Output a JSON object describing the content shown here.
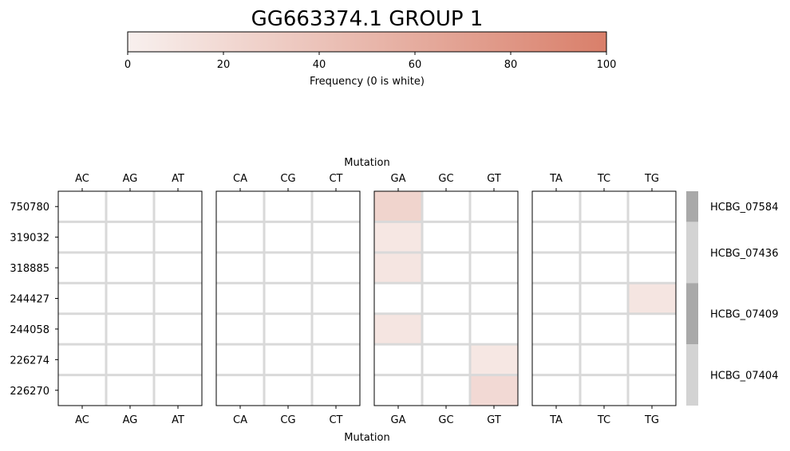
{
  "chart_data": {
    "type": "heatmap",
    "title": "GG663374.1 GROUP 1",
    "colorbar": {
      "label": "Frequency (0 is white)",
      "range": [
        0,
        100
      ],
      "ticks": [
        "0",
        "20",
        "40",
        "60",
        "80",
        "100"
      ],
      "color_low": "#f8f0ee",
      "color_high": "#d97f6a"
    },
    "xlabel": "Mutation",
    "panels": [
      {
        "columns": [
          "AC",
          "AG",
          "AT"
        ]
      },
      {
        "columns": [
          "CA",
          "CG",
          "CT"
        ]
      },
      {
        "columns": [
          "GA",
          "GC",
          "GT"
        ]
      },
      {
        "columns": [
          "TA",
          "TC",
          "TG"
        ]
      }
    ],
    "rows": [
      "750780",
      "319032",
      "318885",
      "244427",
      "244058",
      "226274",
      "226270"
    ],
    "values": [
      [
        0,
        0,
        0,
        0,
        0,
        0,
        25,
        0,
        0,
        0,
        0,
        0
      ],
      [
        0,
        0,
        0,
        0,
        0,
        0,
        8,
        0,
        0,
        0,
        0,
        0
      ],
      [
        0,
        0,
        0,
        0,
        0,
        0,
        10,
        0,
        0,
        0,
        0,
        0
      ],
      [
        0,
        0,
        0,
        0,
        0,
        0,
        0,
        0,
        0,
        0,
        0,
        10
      ],
      [
        0,
        0,
        0,
        0,
        0,
        0,
        10,
        0,
        0,
        0,
        0,
        0
      ],
      [
        0,
        0,
        0,
        0,
        0,
        0,
        0,
        0,
        8,
        0,
        0,
        0
      ],
      [
        0,
        0,
        0,
        0,
        0,
        0,
        0,
        0,
        20,
        0,
        0,
        0
      ]
    ],
    "gene_groups": [
      {
        "label": "HCBG_07584",
        "rows": 1,
        "shade": "#a9a9a9"
      },
      {
        "label": "HCBG_07436",
        "rows": 2,
        "shade": "#d3d3d3"
      },
      {
        "label": "HCBG_07409",
        "rows": 2,
        "shade": "#a9a9a9"
      },
      {
        "label": "HCBG_07404",
        "rows": 2,
        "shade": "#d3d3d3"
      }
    ],
    "grid": true
  }
}
